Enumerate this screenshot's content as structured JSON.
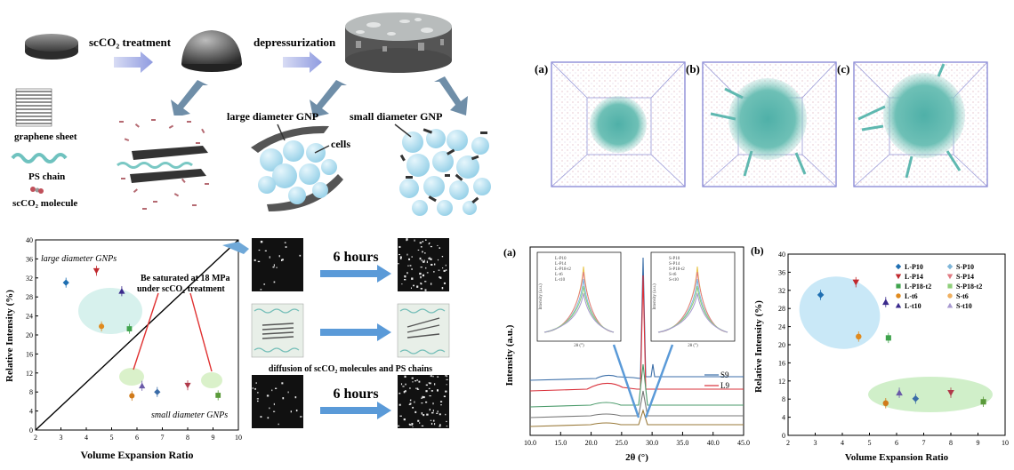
{
  "schematic": {
    "step1": "scCO₂ treatment",
    "step2": "depressurization",
    "large_gnp": "large diameter GNP",
    "small_gnp": "small diameter GNP",
    "cells": "cells",
    "legend_graphene": "graphene sheet",
    "legend_ps": "PS chain",
    "legend_co2": "scCO₂ molecule"
  },
  "md_snapshots": {
    "labels": [
      "(a)",
      "(b)",
      "(c)"
    ]
  },
  "scatter_left": {
    "xlabel": "Volume Expansion Ratio",
    "ylabel": "Relative Intensity (%)",
    "large_label": "large diameter GNPs",
    "small_label": "small diameter GNPs",
    "annotation_line1": "Be saturated at 18 MPa",
    "annotation_line2": "under scCO₂ treatment",
    "micro_time1": "6 hours",
    "micro_time2": "6 hours",
    "diffusion_caption": "diffusion of scCO₂ molecules and PS chains"
  },
  "xrd": {
    "panel_label": "(a)",
    "xlabel": "2θ (°)",
    "ylabel": "Intensity (a.u.)",
    "legend": [
      "S9",
      "L9"
    ],
    "inset1_legend": [
      "L-P10",
      "L-P14",
      "L-P18-t2",
      "L-t6",
      "L-t10"
    ],
    "inset2_legend": [
      "S-P10",
      "S-P14",
      "S-P18-t2",
      "S-t6",
      "S-t10"
    ],
    "inset_xlabel": "2θ (°)",
    "inset_ylabel": "Intensity (a.u.)"
  },
  "chart_data": [
    {
      "type": "scatter",
      "title": "",
      "xlabel": "Volume Expansion Ratio",
      "ylabel": "Relative Intensity (%)",
      "xlim": [
        2,
        10
      ],
      "ylim": [
        0,
        40
      ],
      "xticks": [
        2,
        3,
        4,
        5,
        6,
        7,
        8,
        9,
        10
      ],
      "yticks": [
        0,
        4,
        8,
        12,
        16,
        20,
        24,
        28,
        32,
        36,
        40
      ],
      "points": [
        {
          "x": 3.2,
          "y": 31,
          "color": "#1f6fb2",
          "marker": "diamond"
        },
        {
          "x": 4.4,
          "y": 33.5,
          "color": "#c0282d",
          "marker": "tri-down"
        },
        {
          "x": 4.6,
          "y": 21.8,
          "color": "#e08a1e",
          "marker": "circle"
        },
        {
          "x": 5.7,
          "y": 21.3,
          "color": "#3fa34d",
          "marker": "square"
        },
        {
          "x": 5.4,
          "y": 29.2,
          "color": "#3a2a8c",
          "marker": "tri-up"
        },
        {
          "x": 5.8,
          "y": 7.2,
          "color": "#d07a1a",
          "marker": "circle"
        },
        {
          "x": 6.2,
          "y": 9.3,
          "color": "#6a5aa8",
          "marker": "tri-up"
        },
        {
          "x": 6.8,
          "y": 8.0,
          "color": "#3a6ca8",
          "marker": "diamond"
        },
        {
          "x": 8.0,
          "y": 9.4,
          "color": "#b03a4a",
          "marker": "tri-down"
        },
        {
          "x": 9.2,
          "y": 7.3,
          "color": "#5a9a3a",
          "marker": "square"
        }
      ]
    },
    {
      "type": "line",
      "title": "",
      "xlabel": "2θ (°)",
      "ylabel": "Intensity (a.u.)",
      "xlim": [
        10,
        45
      ],
      "xticks": [
        10,
        15,
        20,
        25,
        30,
        35,
        40,
        45
      ],
      "series": [
        {
          "name": "S9",
          "color": "#3b6ea8"
        },
        {
          "name": "L9",
          "color": "#d9303a"
        }
      ]
    },
    {
      "type": "scatter",
      "title": "",
      "panel_label": "(b)",
      "xlabel": "Volume Expansion Ratio",
      "ylabel": "Relative Intensity (%)",
      "xlim": [
        2,
        10
      ],
      "ylim": [
        0,
        40
      ],
      "xticks": [
        2,
        3,
        4,
        5,
        6,
        7,
        8,
        9,
        10
      ],
      "yticks": [
        0,
        4,
        8,
        12,
        16,
        20,
        24,
        28,
        32,
        36,
        40
      ],
      "legend": [
        {
          "name": "L-P10",
          "color": "#1f6fb2",
          "marker": "diamond"
        },
        {
          "name": "S-P10",
          "color": "#7fb6d9",
          "marker": "diamond"
        },
        {
          "name": "L-P14",
          "color": "#c0282d",
          "marker": "tri-down"
        },
        {
          "name": "S-P14",
          "color": "#e07a82",
          "marker": "tri-down"
        },
        {
          "name": "L-P18-t2",
          "color": "#3fa34d",
          "marker": "square"
        },
        {
          "name": "S-P18-t2",
          "color": "#8fcf7a",
          "marker": "square"
        },
        {
          "name": "L-t6",
          "color": "#e08a1e",
          "marker": "circle"
        },
        {
          "name": "S-t6",
          "color": "#f0b060",
          "marker": "circle"
        },
        {
          "name": "L-t10",
          "color": "#3a2a8c",
          "marker": "tri-up"
        },
        {
          "name": "S-t10",
          "color": "#a89ad0",
          "marker": "tri-up"
        }
      ],
      "points": [
        {
          "x": 3.2,
          "y": 31,
          "color": "#1f6fb2",
          "marker": "diamond"
        },
        {
          "x": 4.5,
          "y": 33.8,
          "color": "#c0282d",
          "marker": "tri-down"
        },
        {
          "x": 4.6,
          "y": 21.8,
          "color": "#e08a1e",
          "marker": "circle"
        },
        {
          "x": 5.7,
          "y": 21.5,
          "color": "#3fa34d",
          "marker": "square"
        },
        {
          "x": 5.6,
          "y": 29.4,
          "color": "#3a2a8c",
          "marker": "tri-up"
        },
        {
          "x": 5.6,
          "y": 7.1,
          "color": "#d07a1a",
          "marker": "circle"
        },
        {
          "x": 6.1,
          "y": 9.4,
          "color": "#6a5aa8",
          "marker": "tri-up"
        },
        {
          "x": 6.7,
          "y": 8.1,
          "color": "#3a6ca8",
          "marker": "diamond"
        },
        {
          "x": 8.0,
          "y": 9.4,
          "color": "#b03a4a",
          "marker": "tri-down"
        },
        {
          "x": 9.2,
          "y": 7.4,
          "color": "#5a9a3a",
          "marker": "square"
        }
      ]
    }
  ]
}
